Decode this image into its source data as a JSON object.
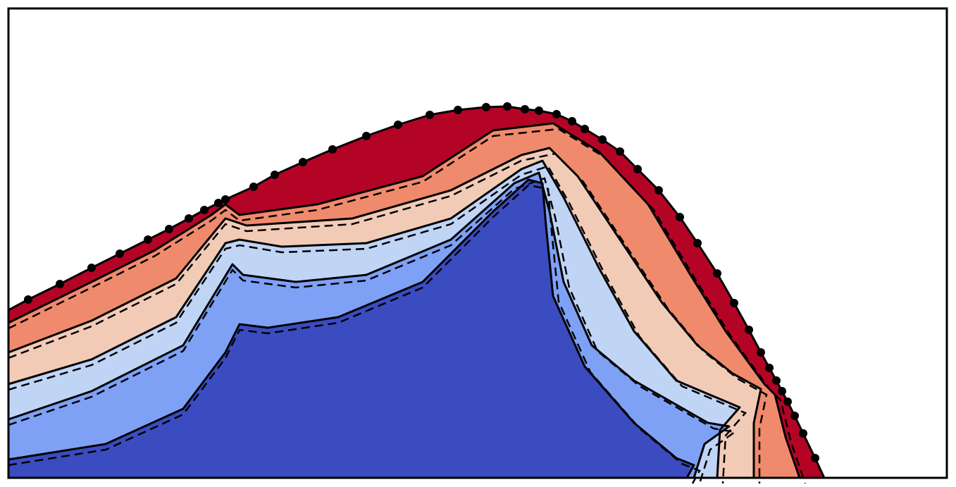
{
  "chart_data": {
    "type": "contour",
    "colors": [
      "#b40426",
      "#f08a6c",
      "#f2cbb7",
      "#c0d4f5",
      "#7ea1f5",
      "#3b4cc0"
    ]
  }
}
